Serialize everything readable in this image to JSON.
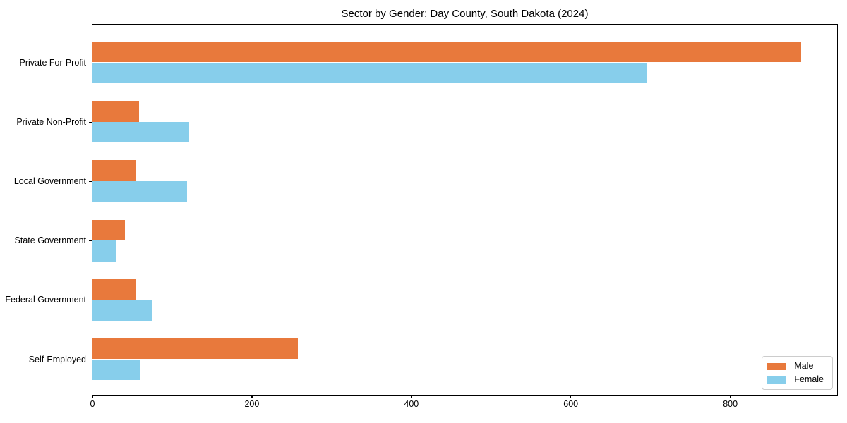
{
  "chart_data": {
    "type": "bar",
    "orientation": "horizontal",
    "title": "Sector by Gender: Day County, South Dakota (2024)",
    "categories": [
      "Private For-Profit",
      "Private Non-Profit",
      "Local Government",
      "State Government",
      "Federal Government",
      "Self-Employed"
    ],
    "series": [
      {
        "name": "Male",
        "color": "#E8793C",
        "values": [
          889,
          58,
          55,
          41,
          55,
          258
        ]
      },
      {
        "name": "Female",
        "color": "#87CEEB",
        "values": [
          696,
          121,
          119,
          30,
          74,
          60
        ]
      }
    ],
    "xlabel": "",
    "ylabel": "",
    "xlim": [
      0,
      934
    ],
    "xticks": [
      0,
      200,
      400,
      600,
      800
    ],
    "xtick_labels": [
      "0",
      "200",
      "400",
      "600",
      "800"
    ],
    "grid": false,
    "legend": {
      "position": "lower right"
    },
    "colors": {
      "spine": "#000000",
      "background": "#ffffff",
      "legend_border": "#cccccc",
      "text": "#000000"
    }
  }
}
